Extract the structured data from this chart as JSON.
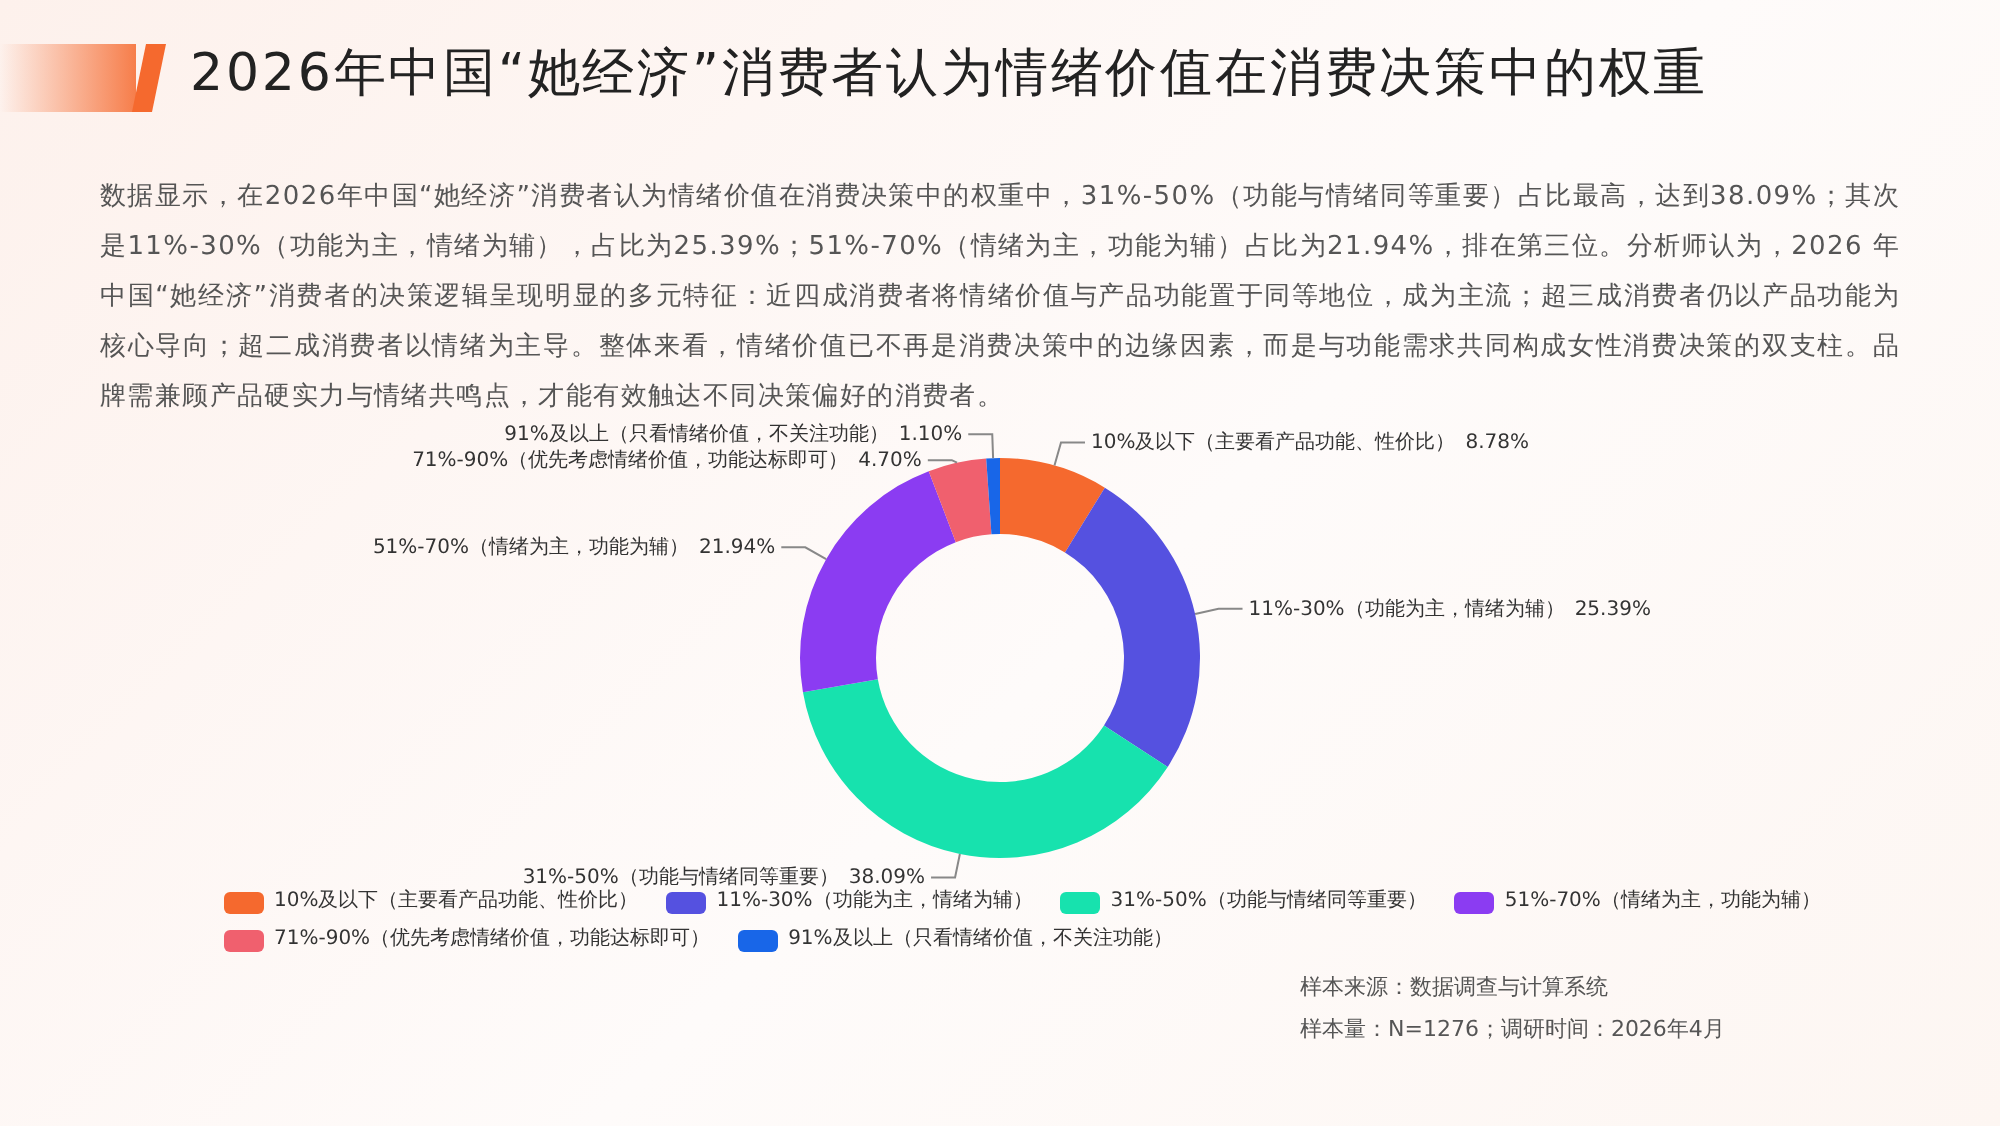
{
  "chart_data": {
    "type": "donut",
    "title": "2026年中国“她经济”消费者认为情绪价值在消费决策中的权重",
    "subtitle": "数据显示，在2026年中国“她经济”消费者认为情绪价值在消费决策中的权重中，31%-50%（功能与情绪同等重要）占比最高，达到38.09%；其次是11%-30%（功能为主，情绪为辅），占比为25.39%；51%-70%（情绪为主，功能为辅）占比为21.94%，排在第三位。分析师认为，2026 年中国“她经济”消费者的决策逻辑呈现明显的多元特征：近四成消费者将情绪价值与产品功能置于同等地位，成为主流；超三成消费者仍以产品功能为核心导向；超二成消费者以情绪为主导。整体来看，情绪价值已不再是消费决策中的边缘因素，而是与功能需求共同构成女性消费决策的双支柱。品牌需兼顾产品硬实力与情绪共鸣点，才能有效触达不同决策偏好的消费者。",
    "categories": [
      "10%及以下（主要看产品功能、性价比）",
      "11%-30%（功能为主，情绪为辅）",
      "31%-50%（功能与情绪同等重要）",
      "51%-70%（情绪为主，功能为辅）",
      "71%-90%（优先考虑情绪价值，功能达标即可）",
      "91%及以上（只看情绪价值，不关注功能）"
    ],
    "values": [
      8.78,
      25.39,
      38.09,
      21.94,
      4.7,
      1.1
    ],
    "value_labels": [
      "8.78%",
      "25.39%",
      "38.09%",
      "21.94%",
      "4.70%",
      "1.10%"
    ],
    "colors": [
      "#f5692e",
      "#5551e0",
      "#17e2ae",
      "#8b3cf2",
      "#f0606e",
      "#1866e8"
    ],
    "legend": "bottom",
    "annotations": [
      "样本来源：数据调查与计算系统",
      "样本量：N=1276；调研时间：2026年4月"
    ]
  }
}
